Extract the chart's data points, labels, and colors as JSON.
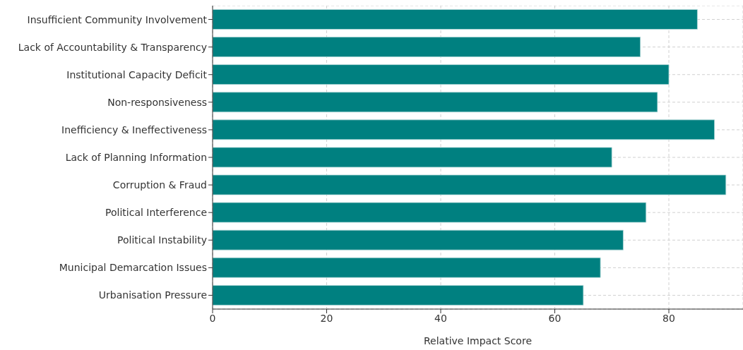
{
  "chart_data": {
    "type": "bar",
    "orientation": "horizontal",
    "xlabel": "Relative Impact Score",
    "categories": [
      "Insufficient Community Involvement",
      "Lack of Accountability & Transparency",
      "Institutional Capacity Deficit",
      "Non-responsiveness",
      "Inefficiency & Ineffectiveness",
      "Lack of Planning Information",
      "Corruption & Fraud",
      "Political Interference",
      "Political Instability",
      "Municipal Demarcation Issues",
      "Urbanisation Pressure"
    ],
    "values": [
      85,
      75,
      80,
      78,
      88,
      70,
      90,
      76,
      72,
      68,
      65
    ],
    "color": "#008080",
    "xlim": [
      0,
      93
    ],
    "xticks": [
      0,
      20,
      40,
      60,
      80
    ],
    "grid": true
  }
}
